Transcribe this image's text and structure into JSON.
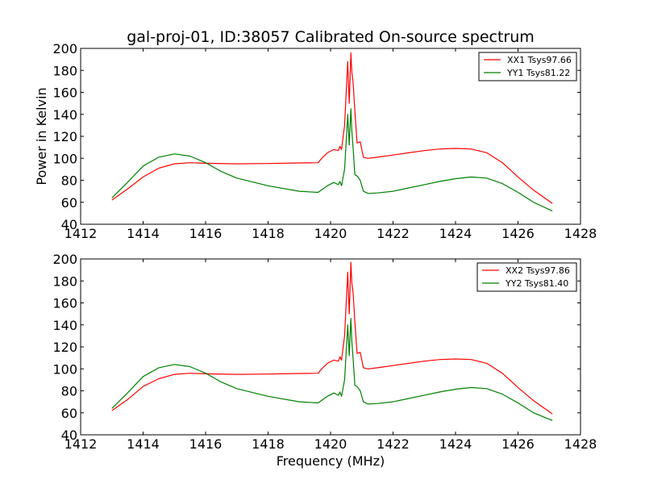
{
  "chart_data": [
    {
      "type": "line",
      "title": "gal-proj-01, ID:38057 Calibrated On-source spectrum",
      "xlabel": "",
      "ylabel": "Power in Kelvin",
      "xlim": [
        1412,
        1428
      ],
      "ylim": [
        40,
        200
      ],
      "xticks": [
        "1412",
        "1414",
        "1416",
        "1418",
        "1420",
        "1422",
        "1424",
        "1426",
        "1428"
      ],
      "yticks": [
        "40",
        "60",
        "80",
        "100",
        "120",
        "140",
        "160",
        "180",
        "200"
      ],
      "grid": false,
      "legend_position": "top-right",
      "series": [
        {
          "name": "XX1 Tsys97.66",
          "color": "#ff0000",
          "x": [
            1413.0,
            1413.5,
            1414.0,
            1414.5,
            1415.0,
            1415.5,
            1416.0,
            1417.0,
            1418.0,
            1419.0,
            1419.6,
            1419.75,
            1419.9,
            1420.1,
            1420.25,
            1420.3,
            1420.35,
            1420.45,
            1420.55,
            1420.6,
            1420.65,
            1420.68,
            1420.72,
            1420.78,
            1420.85,
            1420.95,
            1421.05,
            1421.2,
            1421.5,
            1422.0,
            1422.5,
            1423.0,
            1423.5,
            1424.0,
            1424.5,
            1425.0,
            1425.5,
            1426.0,
            1426.5,
            1427.1
          ],
          "y": [
            62,
            72,
            83,
            91,
            95,
            96,
            95.5,
            95,
            95.3,
            95.8,
            96,
            101,
            105,
            108,
            107,
            111,
            108,
            130,
            188,
            150,
            196,
            178,
            170,
            142,
            114,
            115,
            101,
            100,
            101,
            103,
            105,
            107,
            108.5,
            109,
            108.5,
            105,
            96,
            83,
            71,
            59
          ]
        },
        {
          "name": "YY1 Tsys81.22",
          "color": "#008000",
          "x": [
            1413.0,
            1413.5,
            1414.0,
            1414.5,
            1415.0,
            1415.5,
            1416.0,
            1416.5,
            1417.0,
            1418.0,
            1419.0,
            1419.6,
            1419.75,
            1419.9,
            1420.1,
            1420.25,
            1420.3,
            1420.35,
            1420.45,
            1420.55,
            1420.6,
            1420.65,
            1420.68,
            1420.72,
            1420.78,
            1420.85,
            1420.95,
            1421.05,
            1421.2,
            1421.5,
            1422.0,
            1422.5,
            1423.0,
            1423.5,
            1424.0,
            1424.5,
            1425.0,
            1425.5,
            1426.0,
            1426.5,
            1427.1
          ],
          "y": [
            64,
            78,
            93,
            101,
            104,
            102,
            96,
            88,
            82,
            75,
            70,
            69,
            72,
            75,
            78,
            76,
            79,
            75,
            90,
            140,
            112,
            145,
            125,
            110,
            85,
            84,
            80,
            70,
            68,
            68.5,
            70,
            73,
            76,
            79,
            81.5,
            83,
            82,
            77,
            69,
            60,
            52
          ]
        }
      ]
    },
    {
      "type": "line",
      "title": "",
      "xlabel": "Frequency (MHz)",
      "ylabel": "",
      "xlim": [
        1412,
        1428
      ],
      "ylim": [
        40,
        200
      ],
      "xticks": [
        "1412",
        "1414",
        "1416",
        "1418",
        "1420",
        "1422",
        "1424",
        "1426",
        "1428"
      ],
      "yticks": [
        "40",
        "60",
        "80",
        "100",
        "120",
        "140",
        "160",
        "180",
        "200"
      ],
      "grid": false,
      "legend_position": "top-right",
      "series": [
        {
          "name": "XX2 Tsys97.86",
          "color": "#ff0000",
          "x": [
            1413.0,
            1413.5,
            1414.0,
            1414.5,
            1415.0,
            1415.5,
            1416.0,
            1417.0,
            1418.0,
            1419.0,
            1419.6,
            1419.75,
            1419.9,
            1420.1,
            1420.25,
            1420.3,
            1420.35,
            1420.45,
            1420.55,
            1420.6,
            1420.65,
            1420.68,
            1420.72,
            1420.78,
            1420.85,
            1420.95,
            1421.05,
            1421.2,
            1421.5,
            1422.0,
            1422.5,
            1423.0,
            1423.5,
            1424.0,
            1424.5,
            1425.0,
            1425.5,
            1426.0,
            1426.5,
            1427.1
          ],
          "y": [
            62,
            72,
            84,
            91,
            95,
            96,
            95.5,
            95,
            95.3,
            95.8,
            96,
            101,
            105,
            108,
            107,
            111,
            108,
            130,
            188,
            150,
            197,
            178,
            170,
            142,
            114,
            115,
            101,
            100,
            101,
            103,
            105,
            107,
            108.5,
            109,
            108.5,
            105,
            96,
            83,
            71,
            59
          ]
        },
        {
          "name": "YY2 Tsys81.40",
          "color": "#008000",
          "x": [
            1413.0,
            1413.5,
            1414.0,
            1414.5,
            1415.0,
            1415.5,
            1416.0,
            1416.5,
            1417.0,
            1418.0,
            1419.0,
            1419.6,
            1419.75,
            1419.9,
            1420.1,
            1420.25,
            1420.3,
            1420.35,
            1420.45,
            1420.55,
            1420.6,
            1420.65,
            1420.68,
            1420.72,
            1420.78,
            1420.85,
            1420.95,
            1421.05,
            1421.2,
            1421.5,
            1422.0,
            1422.5,
            1423.0,
            1423.5,
            1424.0,
            1424.5,
            1425.0,
            1425.5,
            1426.0,
            1426.5,
            1427.1
          ],
          "y": [
            64,
            78,
            93,
            101,
            104,
            102,
            96,
            88,
            82,
            75,
            70,
            69,
            72,
            75,
            78,
            76,
            79,
            75,
            90,
            140,
            112,
            146,
            125,
            110,
            85,
            84,
            80,
            70,
            68,
            68.5,
            70,
            73,
            76,
            79,
            81.5,
            83,
            82,
            77,
            69,
            60,
            53
          ]
        }
      ]
    }
  ]
}
